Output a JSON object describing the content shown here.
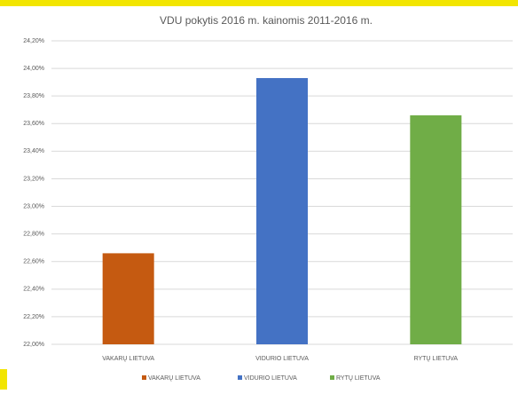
{
  "chart_data": {
    "type": "bar",
    "title": "VDU pokytis 2016 m. kainomis 2011-2016 m.",
    "categories": [
      "VAKARŲ LIETUVA",
      "VIDURIO LIETUVA",
      "RYTŲ LIETUVA"
    ],
    "values": [
      22.66,
      23.93,
      23.66
    ],
    "colors": [
      "#c55a11",
      "#4472c4",
      "#70ad47"
    ],
    "ylim": [
      22,
      24.2
    ],
    "yticks": [
      {
        "value": 22,
        "label": "22,00%"
      },
      {
        "value": 22.2,
        "label": "22,20%"
      },
      {
        "value": 22.4,
        "label": "22,40%"
      },
      {
        "value": 22.6,
        "label": "22,60%"
      },
      {
        "value": 22.8,
        "label": "22,80%"
      },
      {
        "value": 23,
        "label": "23,00%"
      },
      {
        "value": 23.2,
        "label": "23,20%"
      },
      {
        "value": 23.4,
        "label": "23,40%"
      },
      {
        "value": 23.6,
        "label": "23,60%"
      },
      {
        "value": 23.8,
        "label": "23,80%"
      },
      {
        "value": 24,
        "label": "24,00%"
      },
      {
        "value": 24.2,
        "label": "24,20%"
      }
    ],
    "grid": true
  }
}
